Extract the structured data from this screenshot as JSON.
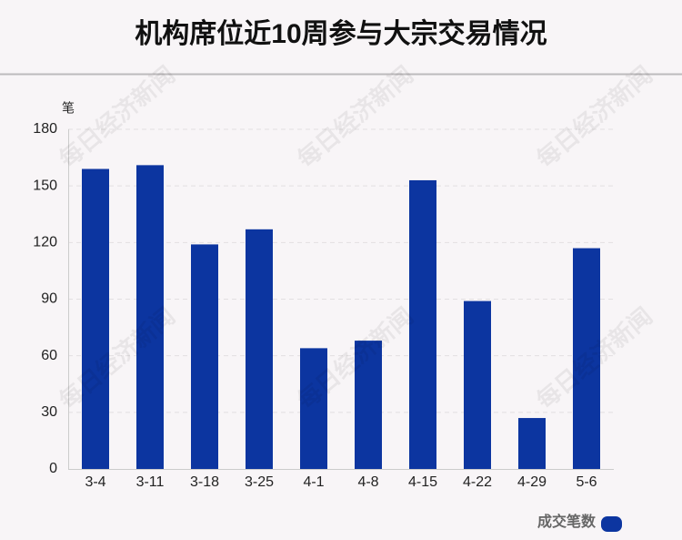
{
  "chart_data": {
    "type": "bar",
    "title": "机构席位近10周参与大宗交易情况",
    "y_label": "笔",
    "categories": [
      "3-4",
      "3-11",
      "3-18",
      "3-25",
      "4-1",
      "4-8",
      "4-15",
      "4-22",
      "4-29",
      "5-6"
    ],
    "series": [
      {
        "name": "成交笔数",
        "color": "#0c35a0",
        "values": [
          159,
          161,
          119,
          127,
          64,
          68,
          153,
          89,
          27,
          117
        ]
      }
    ],
    "ylim": [
      0,
      180
    ],
    "yticks": [
      0,
      30,
      60,
      90,
      120,
      150,
      180
    ],
    "grid": true,
    "legend": "bottom-right",
    "watermark": "每日经济新闻"
  }
}
